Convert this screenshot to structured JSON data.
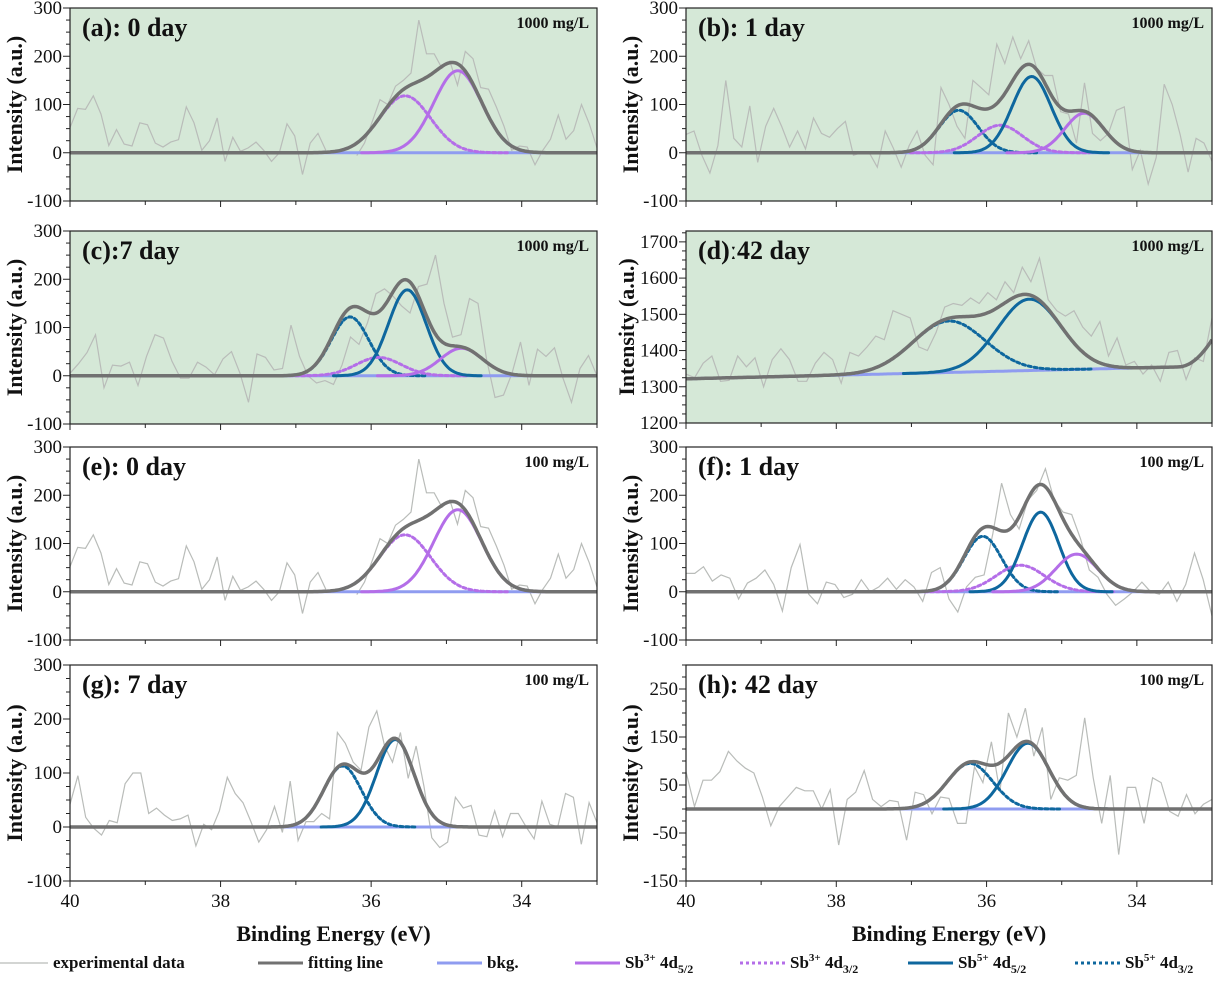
{
  "figure": {
    "x_axis_title": "Binding Energy (eV)",
    "y_axis_title": "Intensity (a.u.)",
    "colors": {
      "experimental": "#b9bcb9",
      "fitting": "#717171",
      "bkg": "#8f9cf0",
      "sb3_52": "#b46ee8",
      "sb3_32": "#b46ee8",
      "sb5_52": "#0e679e",
      "sb5_32": "#0e679e",
      "panel_bg_1000": "#d5e8d7",
      "panel_bg_100": "#ffffff"
    }
  },
  "legend": [
    {
      "key": "experimental",
      "label": "experimental data",
      "style": "thin"
    },
    {
      "key": "fitting",
      "label": "fitting line",
      "style": "thick"
    },
    {
      "key": "bkg",
      "label": "bkg.",
      "style": "thick"
    },
    {
      "key": "sb3_52",
      "label": "Sb",
      "sup": "3+",
      "orb": " 4d",
      "sub": "5/2",
      "style": "thick"
    },
    {
      "key": "sb3_32",
      "label": "Sb",
      "sup": "3+",
      "orb": " 4d",
      "sub": "3/2",
      "style": "dotted"
    },
    {
      "key": "sb5_52",
      "label": "Sb",
      "sup": "5+",
      "orb": " 4d",
      "sub": "5/2",
      "style": "thick"
    },
    {
      "key": "sb5_32",
      "label": "Sb",
      "sup": "5+",
      "orb": " 4d",
      "sub": "3/2",
      "style": "dotted"
    }
  ],
  "chart_data": [
    {
      "id": "a",
      "type": "line",
      "title": "(a): 0 day",
      "concentration": "1000 mg/L",
      "xlabel": "",
      "ylabel": "Intensity (a.u.)",
      "xlim": [
        40,
        33
      ],
      "ylim": [
        -100,
        300
      ],
      "yticks": [
        -100,
        0,
        100,
        200,
        300
      ],
      "xticks": [
        40,
        38,
        36,
        34
      ],
      "show_xticklabels": false,
      "background": "1000",
      "bkg": [
        0,
        0
      ],
      "components": [
        {
          "key": "sb3_52",
          "center": 34.85,
          "height": 170,
          "sigma": 0.32
        },
        {
          "key": "sb3_32",
          "center": 35.55,
          "height": 118,
          "sigma": 0.34
        }
      ],
      "experimental": [
        52,
        92,
        90,
        118,
        80,
        15,
        48,
        18,
        14,
        62,
        58,
        20,
        12,
        22,
        27,
        95,
        62,
        5,
        25,
        72,
        -18,
        32,
        3,
        10,
        22,
        5,
        -18,
        0,
        60,
        35,
        -45,
        20,
        40,
        5,
        null,
        null,
        null,
        -6,
        20,
        65,
        110,
        100,
        138,
        150,
        165,
        275,
        205,
        205,
        175,
        190,
        140,
        210,
        195,
        135,
        132,
        95,
        55,
        5,
        14,
        12,
        -25,
        5,
        28,
        78,
        28,
        46,
        100,
        60,
        10
      ]
    },
    {
      "id": "b",
      "type": "line",
      "title": "(b): 1 day",
      "concentration": "1000 mg/L",
      "xlabel": "",
      "ylabel": "Intensity (a.u.)",
      "xlim": [
        40,
        33
      ],
      "ylim": [
        -100,
        300
      ],
      "yticks": [
        -100,
        0,
        100,
        200,
        300
      ],
      "xticks": [
        40,
        38,
        36,
        34
      ],
      "show_xticklabels": false,
      "background": "1000",
      "bkg": [
        0,
        0
      ],
      "components": [
        {
          "key": "sb5_32",
          "center": 36.37,
          "height": 88,
          "sigma": 0.26
        },
        {
          "key": "sb3_32",
          "center": 35.82,
          "height": 57,
          "sigma": 0.3
        },
        {
          "key": "sb5_52",
          "center": 35.4,
          "height": 158,
          "sigma": 0.26
        },
        {
          "key": "sb3_52",
          "center": 34.7,
          "height": 82,
          "sigma": 0.26
        }
      ],
      "experimental": [
        38,
        45,
        -5,
        -42,
        15,
        150,
        30,
        12,
        97,
        -20,
        55,
        92,
        55,
        12,
        45,
        8,
        72,
        40,
        32,
        50,
        65,
        -5,
        0,
        0,
        -30,
        45,
        10,
        -30,
        15,
        45,
        -5,
        -25,
        135,
        100,
        55,
        30,
        150,
        135,
        120,
        225,
        185,
        240,
        195,
        232,
        175,
        160,
        160,
        85,
        80,
        20,
        145,
        40,
        25,
        40,
        88,
        95,
        -35,
        5,
        -65,
        -10,
        142,
        100,
        38,
        -40,
        30,
        20,
        -18
      ]
    },
    {
      "id": "c",
      "type": "line",
      "title": "(c):7 day",
      "concentration": "1000 mg/L",
      "xlabel": "",
      "ylabel": "Intensity (a.u.)",
      "xlim": [
        40,
        33
      ],
      "ylim": [
        -100,
        300
      ],
      "yticks": [
        -100,
        0,
        100,
        200,
        300
      ],
      "xticks": [
        40,
        38,
        36,
        34
      ],
      "show_xticklabels": false,
      "background": "1000",
      "bkg": [
        0,
        0
      ],
      "components": [
        {
          "key": "sb5_32",
          "center": 36.28,
          "height": 122,
          "sigma": 0.25
        },
        {
          "key": "sb3_32",
          "center": 35.9,
          "height": 38,
          "sigma": 0.3
        },
        {
          "key": "sb5_52",
          "center": 35.52,
          "height": 178,
          "sigma": 0.25
        },
        {
          "key": "sb3_52",
          "center": 34.8,
          "height": 57,
          "sigma": 0.28
        }
      ],
      "experimental": [
        5,
        25,
        48,
        85,
        -25,
        22,
        20,
        28,
        -20,
        40,
        85,
        78,
        30,
        -5,
        -5,
        28,
        18,
        2,
        35,
        50,
        5,
        -55,
        45,
        38,
        12,
        15,
        105,
        40,
        0,
        -15,
        -10,
        -18,
        22,
        80,
        65,
        110,
        170,
        180,
        165,
        145,
        130,
        185,
        190,
        250,
        150,
        80,
        85,
        160,
        150,
        35,
        -45,
        -40,
        5,
        70,
        -20,
        55,
        40,
        58,
        -5,
        -55,
        15,
        42,
        0
      ]
    },
    {
      "id": "d",
      "type": "line",
      "title": "(d)ː42 day",
      "concentration": "1000 mg/L",
      "xlabel": "",
      "ylabel": "Intensity (a.u.)",
      "xlim": [
        40,
        33
      ],
      "ylim": [
        1200,
        1730
      ],
      "yticks": [
        1200,
        1300,
        1400,
        1500,
        1600,
        1700
      ],
      "xticks": [
        40,
        38,
        36,
        34
      ],
      "show_xticklabels": false,
      "background": "1000",
      "bkg": [
        1322,
        1352
      ],
      "extra_rise": {
        "start": 33.45,
        "end_value": 1430
      },
      "components": [
        {
          "key": "sb5_32",
          "center": 36.5,
          "height": 142,
          "sigma": 0.48
        },
        {
          "key": "sb5_52",
          "center": 35.43,
          "height": 197,
          "sigma": 0.42
        }
      ],
      "experimental": [
        1335,
        1325,
        1365,
        1385,
        1315,
        1318,
        1385,
        1355,
        1380,
        1300,
        1375,
        1405,
        1375,
        1315,
        1315,
        1365,
        1395,
        1375,
        1310,
        1395,
        1385,
        1410,
        1440,
        1430,
        1510,
        1500,
        1490,
        1410,
        1400,
        1450,
        1520,
        1530,
        1525,
        1545,
        1530,
        1560,
        1540,
        1590,
        1560,
        1630,
        1590,
        1655,
        1540,
        1510,
        1495,
        1510,
        1465,
        1440,
        1480,
        1385,
        1435,
        1360,
        1370,
        1335,
        1360,
        1315,
        1395,
        1400,
        1320,
        1380,
        1370,
        1490
      ]
    },
    {
      "id": "e",
      "type": "line",
      "title": "(e): 0 day",
      "concentration": "100 mg/L",
      "xlabel": "",
      "ylabel": "Intensity (a.u.)",
      "xlim": [
        40,
        33
      ],
      "ylim": [
        -100,
        300
      ],
      "yticks": [
        -100,
        0,
        100,
        200,
        300
      ],
      "xticks": [
        40,
        38,
        36,
        34
      ],
      "show_xticklabels": false,
      "background": "100",
      "bkg": [
        0,
        0
      ],
      "components": [
        {
          "key": "sb3_52",
          "center": 34.85,
          "height": 170,
          "sigma": 0.32
        },
        {
          "key": "sb3_32",
          "center": 35.55,
          "height": 118,
          "sigma": 0.34
        }
      ],
      "experimental": [
        52,
        92,
        90,
        118,
        80,
        15,
        48,
        18,
        14,
        62,
        58,
        20,
        12,
        22,
        27,
        95,
        62,
        5,
        25,
        72,
        -18,
        32,
        3,
        10,
        22,
        5,
        -18,
        0,
        60,
        35,
        -45,
        20,
        40,
        5,
        null,
        null,
        null,
        -6,
        20,
        65,
        110,
        100,
        138,
        150,
        165,
        275,
        205,
        205,
        175,
        190,
        140,
        210,
        195,
        135,
        132,
        95,
        55,
        5,
        14,
        12,
        -25,
        5,
        28,
        78,
        28,
        46,
        100,
        60,
        10
      ]
    },
    {
      "id": "f",
      "type": "line",
      "title": "(f): 1 day",
      "concentration": "100 mg/L",
      "xlabel": "",
      "ylabel": "Intensity (a.u.)",
      "xlim": [
        40,
        33
      ],
      "ylim": [
        -100,
        300
      ],
      "yticks": [
        -100,
        0,
        100,
        200,
        300
      ],
      "xticks": [
        40,
        38,
        36,
        34
      ],
      "show_xticklabels": false,
      "background": "100",
      "bkg": [
        0,
        0
      ],
      "components": [
        {
          "key": "sb5_32",
          "center": 36.05,
          "height": 115,
          "sigma": 0.25
        },
        {
          "key": "sb3_32",
          "center": 35.55,
          "height": 55,
          "sigma": 0.32
        },
        {
          "key": "sb5_52",
          "center": 35.28,
          "height": 165,
          "sigma": 0.24
        },
        {
          "key": "sb3_52",
          "center": 34.8,
          "height": 78,
          "sigma": 0.28
        }
      ],
      "experimental": [
        38,
        38,
        52,
        22,
        35,
        28,
        -15,
        18,
        28,
        45,
        15,
        -40,
        50,
        98,
        -5,
        -25,
        20,
        15,
        -12,
        -5,
        25,
        0,
        10,
        28,
        5,
        25,
        10,
        -20,
        40,
        50,
        -15,
        -42,
        10,
        30,
        35,
        120,
        225,
        160,
        130,
        190,
        210,
        255,
        190,
        165,
        160,
        110,
        45,
        30,
        -5,
        -28,
        -15,
        0,
        20,
        0,
        -5,
        20,
        -20,
        15,
        80,
        25,
        -50
      ]
    },
    {
      "id": "g",
      "type": "line",
      "title": "(g): 7 day",
      "concentration": "100 mg/L",
      "xlabel": "Binding Energy (eV)",
      "ylabel": "Intensity (a.u.)",
      "xlim": [
        40,
        33
      ],
      "ylim": [
        -100,
        300
      ],
      "yticks": [
        -100,
        0,
        100,
        200,
        300
      ],
      "xticks": [
        40,
        38,
        36,
        34
      ],
      "show_xticklabels": true,
      "background": "100",
      "bkg": [
        0,
        0
      ],
      "components": [
        {
          "key": "sb5_32",
          "center": 36.38,
          "height": 113,
          "sigma": 0.25
        },
        {
          "key": "sb5_52",
          "center": 35.68,
          "height": 162,
          "sigma": 0.25
        }
      ],
      "experimental": [
        42,
        95,
        18,
        -2,
        -15,
        12,
        8,
        80,
        100,
        100,
        25,
        35,
        22,
        12,
        15,
        22,
        -35,
        5,
        -5,
        30,
        92,
        62,
        45,
        10,
        -28,
        -5,
        38,
        -10,
        85,
        -25,
        10,
        10,
        25,
        15,
        175,
        155,
        120,
        105,
        185,
        215,
        150,
        120,
        175,
        90,
        150,
        75,
        -20,
        -38,
        -28,
        55,
        35,
        40,
        -15,
        -18,
        30,
        -18,
        25,
        25,
        0,
        -22,
        48,
        5,
        0,
        62,
        55,
        -32,
        45,
        8
      ]
    },
    {
      "id": "h",
      "type": "line",
      "title": "(h): 42 day",
      "concentration": "100 mg/L",
      "xlabel": "Binding Energy (eV)",
      "ylabel": "Intensity (a.u.)",
      "xlim": [
        40,
        33
      ],
      "ylim": [
        -150,
        300
      ],
      "yticks": [
        -150,
        -50,
        50,
        150,
        250
      ],
      "xticks": [
        40,
        38,
        36,
        34
      ],
      "show_xticklabels": true,
      "background": "100",
      "bkg": [
        0,
        0
      ],
      "components": [
        {
          "key": "sb5_32",
          "center": 36.22,
          "height": 95,
          "sigma": 0.3
        },
        {
          "key": "sb5_52",
          "center": 35.45,
          "height": 137,
          "sigma": 0.28
        }
      ],
      "experimental": [
        78,
        5,
        60,
        60,
        78,
        120,
        100,
        85,
        75,
        25,
        -35,
        5,
        25,
        45,
        38,
        38,
        0,
        40,
        -75,
        20,
        35,
        80,
        20,
        5,
        18,
        15,
        -65,
        35,
        30,
        -10,
        25,
        22,
        -30,
        -30,
        88,
        55,
        140,
        35,
        200,
        150,
        210,
        110,
        170,
        20,
        65,
        60,
        70,
        190,
        65,
        -30,
        70,
        -95,
        45,
        45,
        -30,
        65,
        55,
        -5,
        -15,
        30,
        -10,
        10,
        20
      ]
    }
  ]
}
